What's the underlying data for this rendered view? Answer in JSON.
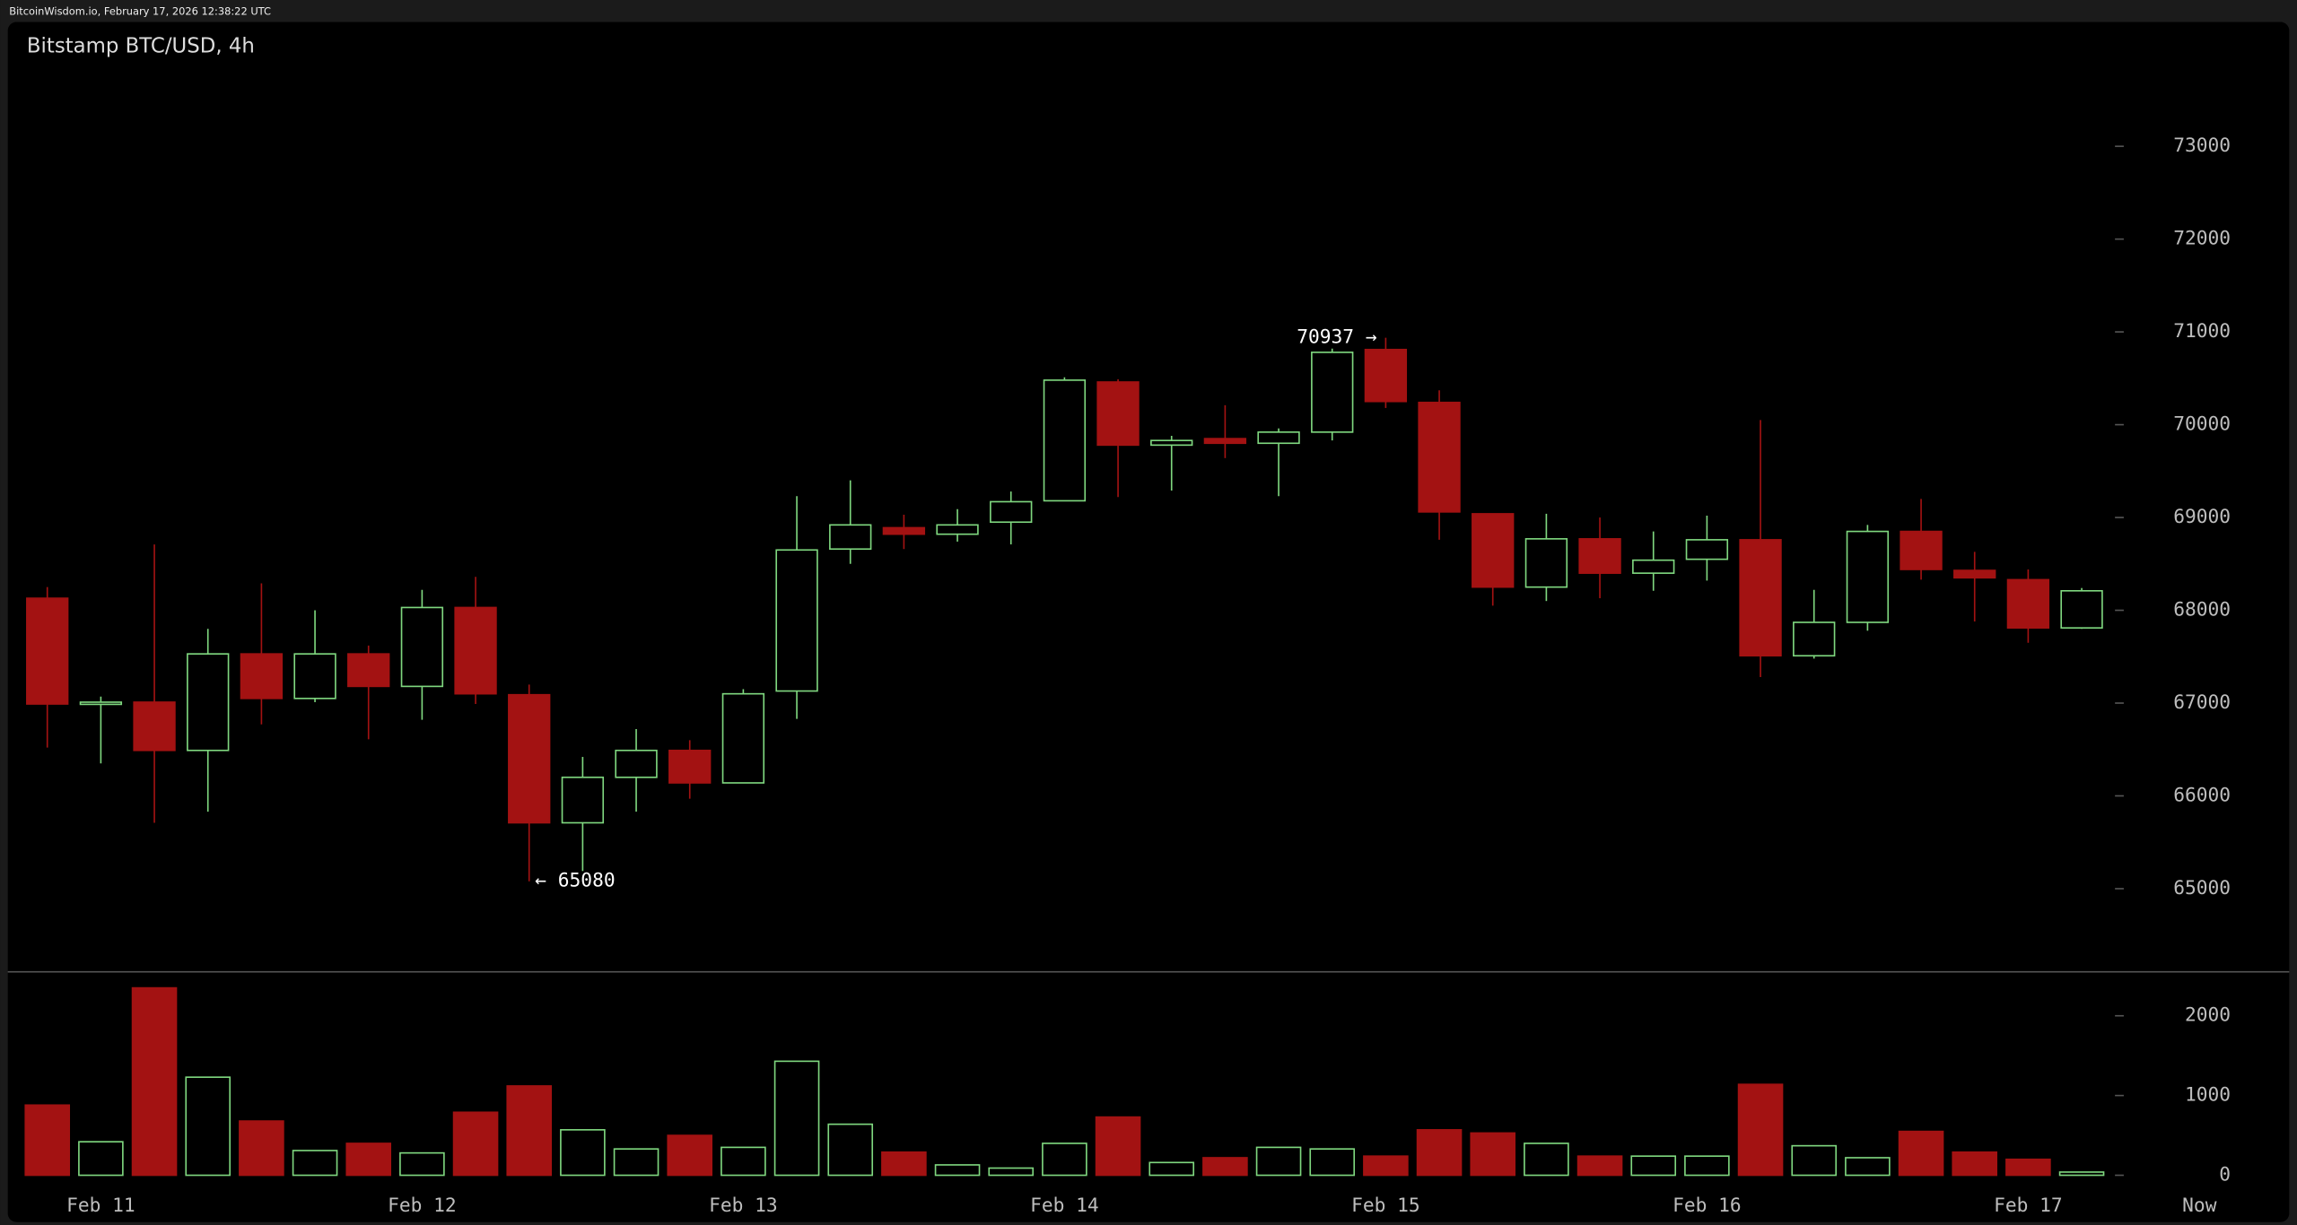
{
  "header": {
    "source": "BitcoinWisdom.io, February 17, 2026 12:38:22 UTC"
  },
  "chart_data": [
    {
      "type": "candlestick",
      "title": "Bitstamp BTC/USD, 4h",
      "categories": [
        null,
        "Feb 11",
        null,
        null,
        null,
        null,
        null,
        "Feb 12",
        null,
        null,
        null,
        null,
        null,
        "Feb 13",
        null,
        null,
        null,
        null,
        null,
        "Feb 14",
        null,
        null,
        null,
        null,
        null,
        "Feb 15",
        null,
        null,
        null,
        null,
        null,
        "Feb 16",
        null,
        null,
        null,
        null,
        null,
        "Feb 17",
        null
      ],
      "end_label": "Now",
      "open": [
        68130,
        67000,
        67010,
        66490,
        67530,
        67050,
        67530,
        67180,
        68030,
        67090,
        65710,
        66200,
        66490,
        66140,
        67130,
        68660,
        68890,
        68820,
        68950,
        69180,
        70460,
        69780,
        69850,
        69800,
        69920,
        70810,
        70240,
        69040,
        68250,
        68770,
        68400,
        68550,
        68760,
        67510,
        67870,
        68850,
        68430,
        68330,
        67810
      ],
      "high": [
        68250,
        67070,
        68710,
        67800,
        68290,
        68000,
        67620,
        68220,
        68360,
        67200,
        66420,
        66720,
        66600,
        67150,
        69230,
        69400,
        69030,
        69090,
        69280,
        70510,
        70490,
        69880,
        70210,
        69960,
        70820,
        70937,
        70370,
        69040,
        69040,
        69000,
        68850,
        69020,
        70050,
        68220,
        68920,
        69200,
        68630,
        68440,
        68240
      ],
      "low": [
        66520,
        66350,
        65710,
        65830,
        66770,
        67010,
        66610,
        66820,
        66990,
        65080,
        65190,
        65830,
        65970,
        66140,
        66830,
        68500,
        68660,
        68740,
        68710,
        69180,
        69220,
        69290,
        69640,
        69230,
        69830,
        70180,
        68760,
        68050,
        68100,
        68130,
        68210,
        68320,
        67280,
        67480,
        67780,
        68330,
        67880,
        67650,
        67800
      ],
      "close": [
        66990,
        67010,
        66490,
        67530,
        67050,
        67530,
        67180,
        68030,
        67100,
        65710,
        66200,
        66490,
        66140,
        67100,
        68650,
        68920,
        68820,
        68920,
        69170,
        70480,
        69780,
        69830,
        69800,
        69920,
        70780,
        70250,
        69060,
        68250,
        68770,
        68400,
        68540,
        68760,
        67510,
        67870,
        68850,
        68440,
        68350,
        67810,
        68210
      ],
      "up_color": "#7fd77f",
      "down_color": "#a31212",
      "annotations": [
        {
          "label": "70937 →",
          "value": 70937,
          "side": "high"
        },
        {
          "label": "← 65080",
          "value": 65080,
          "side": "low"
        }
      ],
      "ylim": [
        64120,
        74340
      ],
      "yticks": [
        65000,
        66000,
        67000,
        68000,
        69000,
        70000,
        71000,
        72000,
        73000
      ]
    },
    {
      "type": "bar",
      "values": [
        880,
        420,
        2350,
        1230,
        680,
        310,
        400,
        280,
        790,
        1120,
        570,
        330,
        500,
        350,
        1430,
        640,
        290,
        130,
        90,
        400,
        730,
        160,
        220,
        350,
        330,
        240,
        570,
        530,
        400,
        240,
        240,
        240,
        1140,
        370,
        220,
        550,
        290,
        200,
        40
      ],
      "ylim": [
        -165,
        2570
      ],
      "yticks": [
        0,
        1000,
        2000
      ]
    }
  ]
}
